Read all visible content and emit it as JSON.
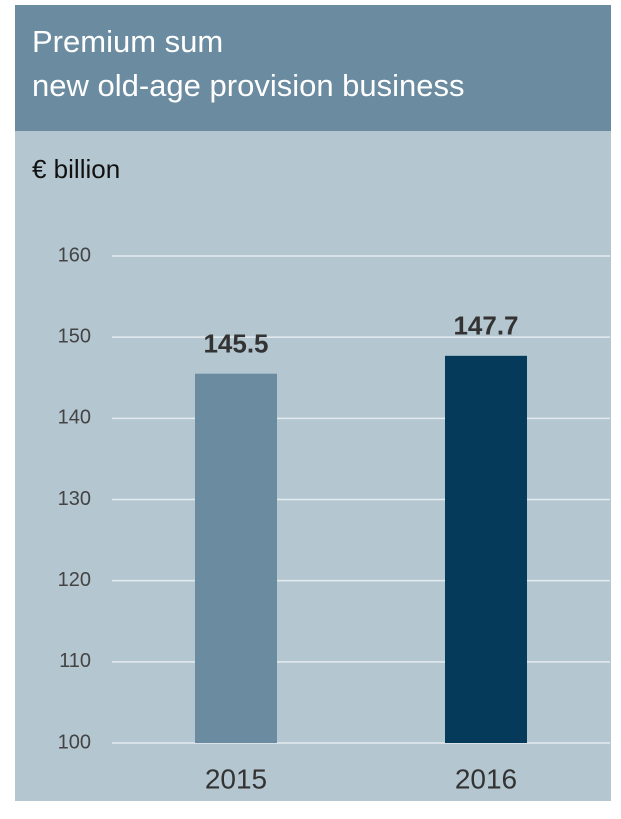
{
  "chart_data": {
    "type": "bar",
    "title": [
      "Premium sum",
      "new old-age provision business"
    ],
    "y_label": "€ billion",
    "categories": [
      "2015",
      "2016"
    ],
    "values": [
      145.5,
      147.7
    ],
    "colors": [
      "#6a8ba0",
      "#063a5b"
    ],
    "ylim": [
      100,
      160
    ],
    "yticks": [
      100,
      110,
      120,
      130,
      140,
      150,
      160
    ],
    "grid": true
  }
}
